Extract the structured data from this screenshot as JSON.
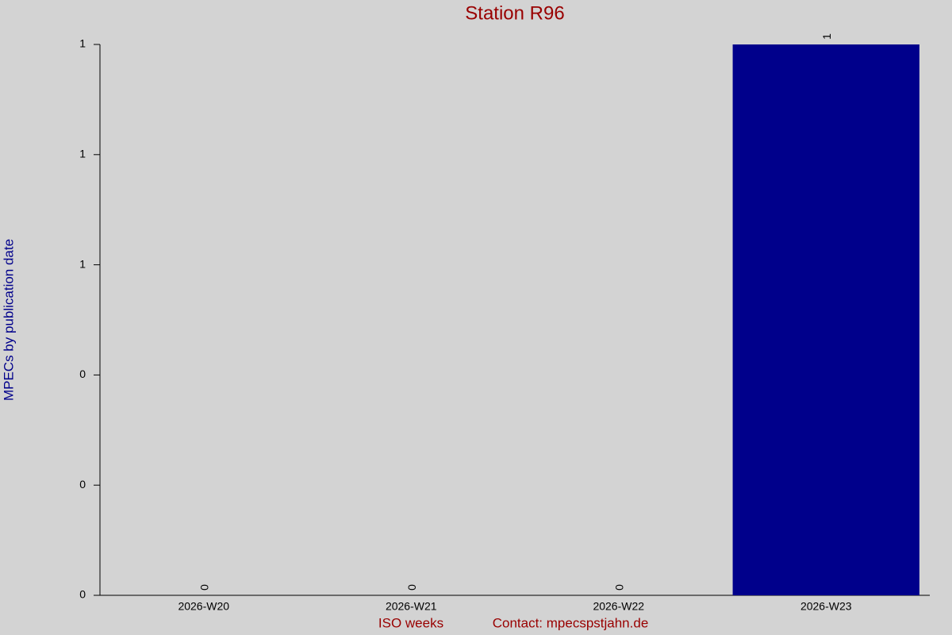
{
  "chart_data": {
    "type": "bar",
    "title": "Station R96",
    "x_label": "ISO weeks",
    "y_label": "MPECs by publication date",
    "footer": "Contact: mpecspstjahn.de",
    "categories": [
      "2026-W20",
      "2026-W21",
      "2026-W22",
      "2026-W23"
    ],
    "values": [
      0,
      0,
      0,
      1
    ],
    "color": "#00008b",
    "ylim": [
      0,
      1
    ],
    "yticks": [
      0,
      {
        "value": 0.2,
        "label": "0"
      },
      {
        "value": 0.4,
        "label": "0"
      },
      {
        "value": 0.6,
        "label": "1"
      },
      {
        "value": 0.8,
        "label": "1"
      },
      1
    ],
    "grid": false
  }
}
